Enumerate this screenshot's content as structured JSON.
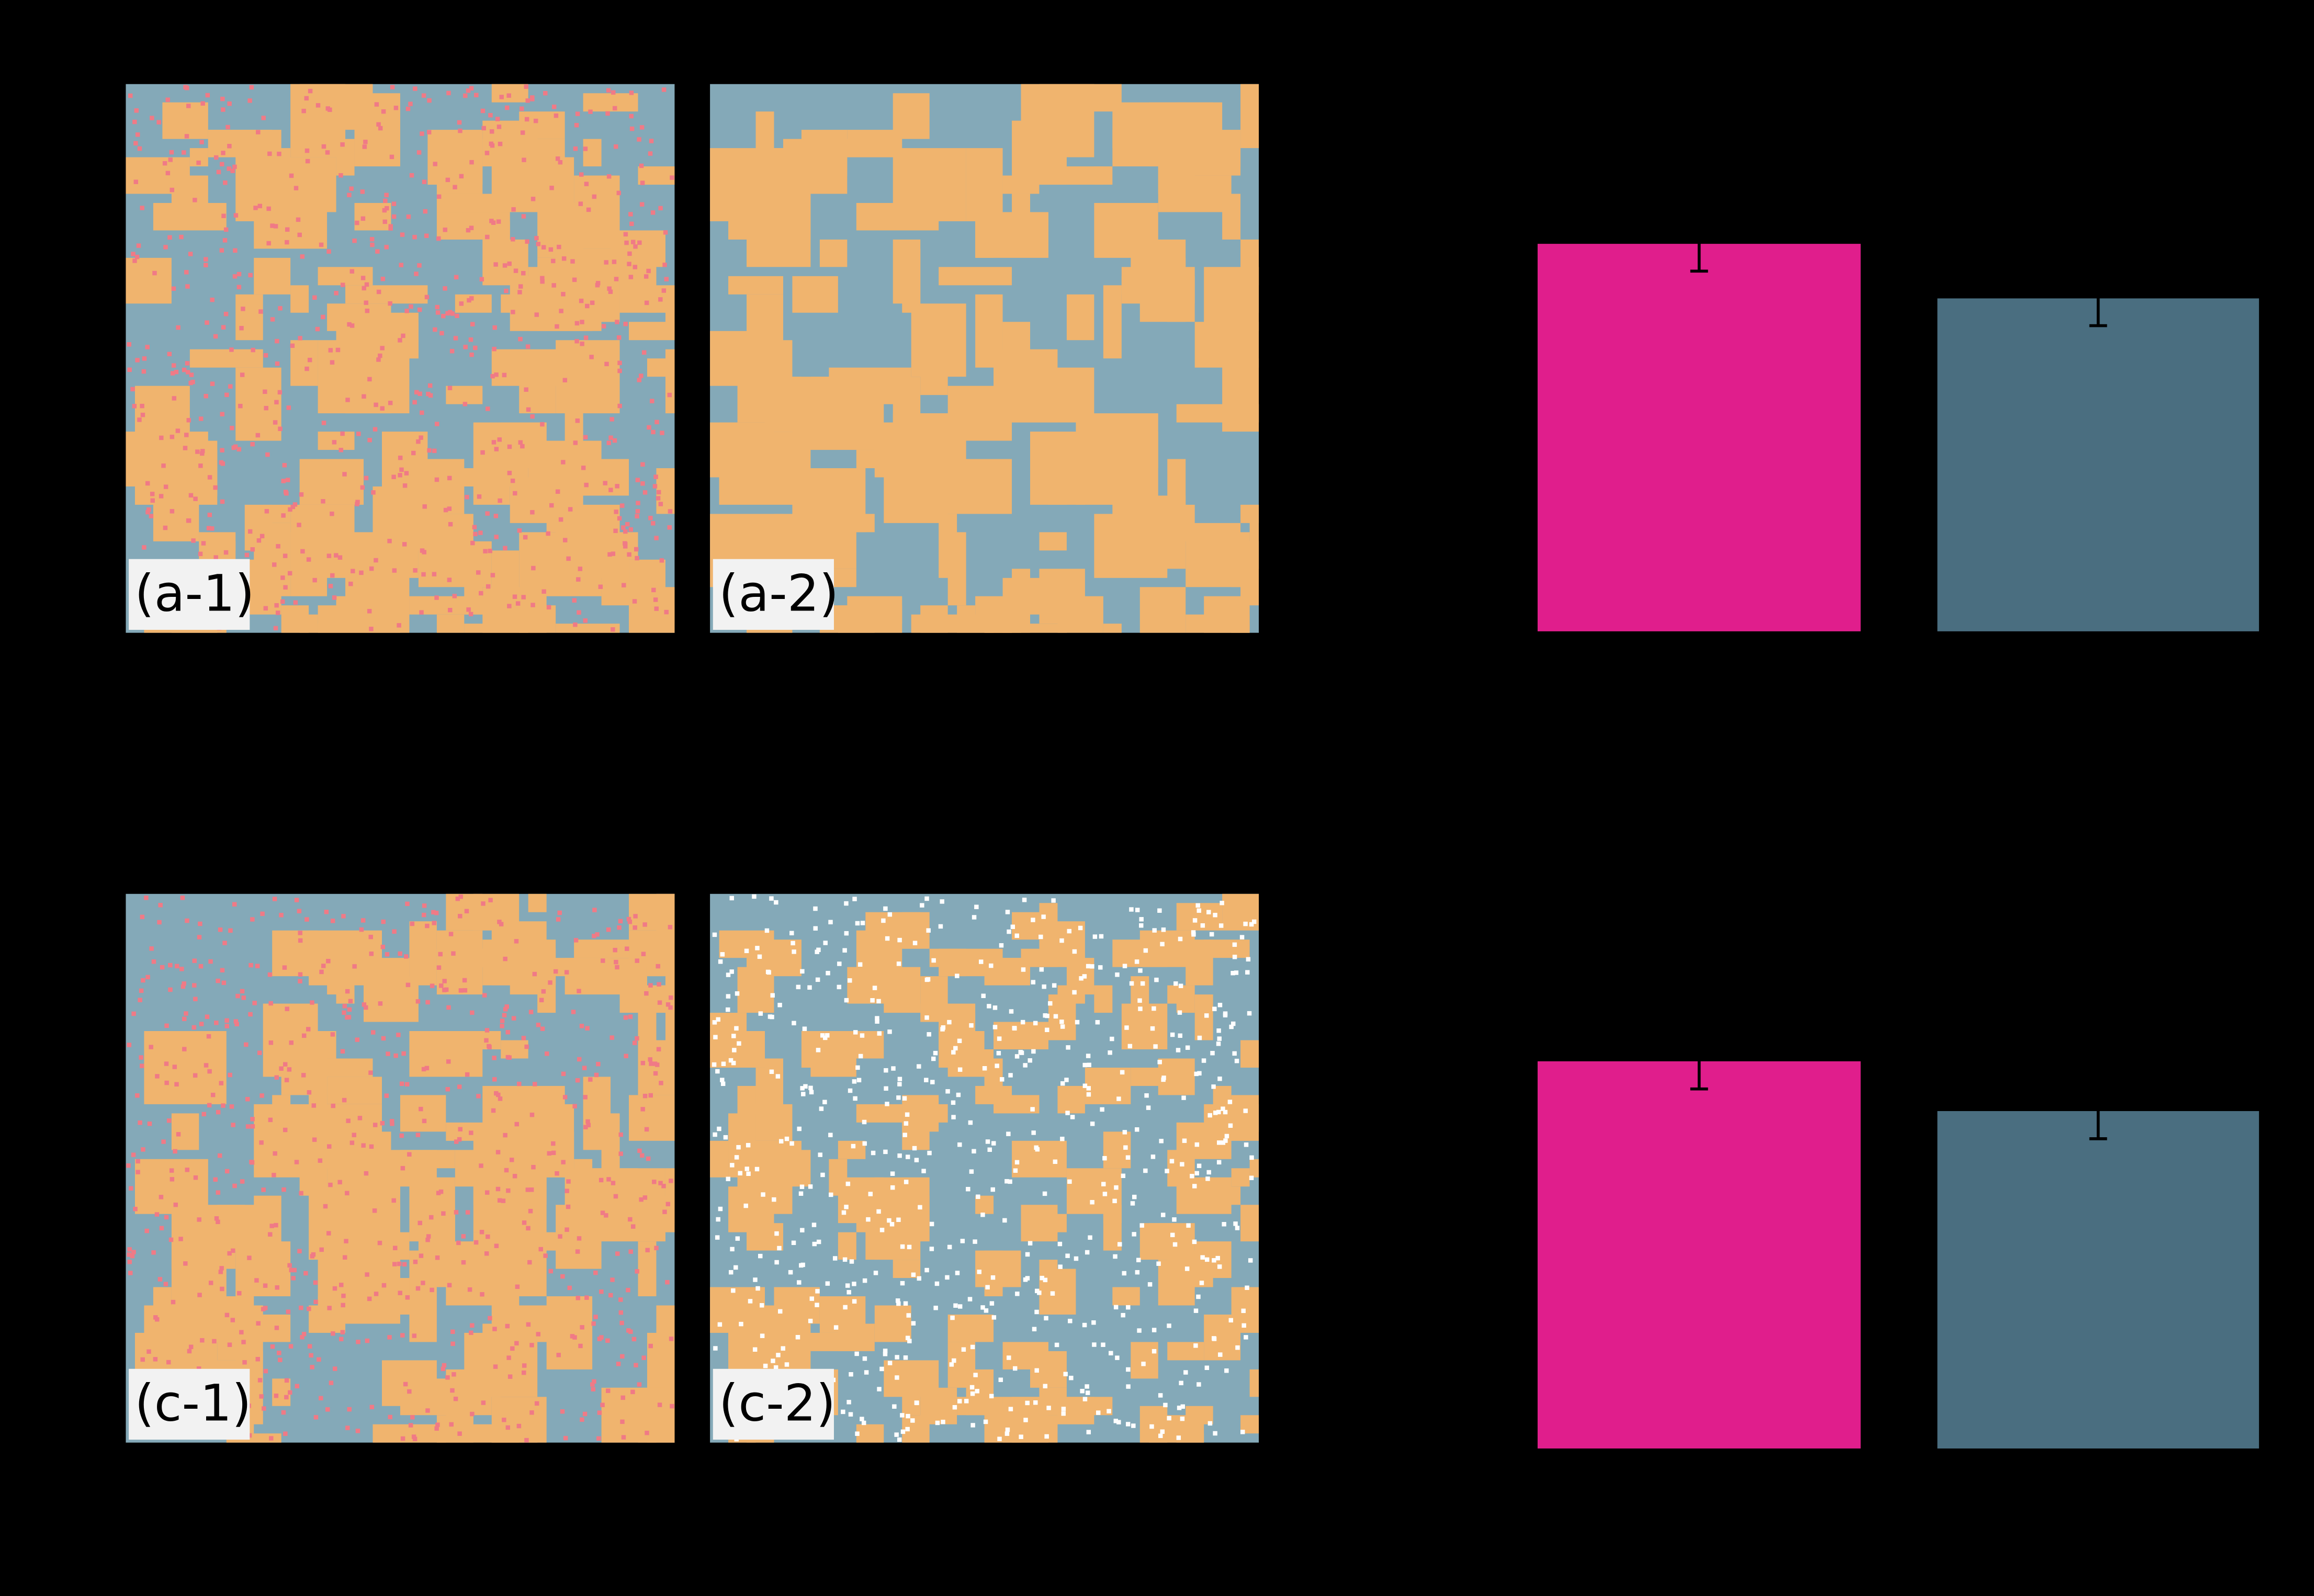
{
  "panels": [
    {
      "label": "(a-1)"
    },
    {
      "label": "(a-2)"
    },
    {
      "label": "(c-1)"
    },
    {
      "label": "(c-2)"
    }
  ],
  "chart_data": [
    {
      "type": "bar",
      "categories": [
        null,
        null
      ],
      "values": [
        0.71,
        0.61
      ],
      "errors": [
        0.05,
        0.05
      ],
      "colors": [
        "#e01e8c",
        "#4a6e80"
      ],
      "ylim": [
        0,
        1
      ]
    },
    {
      "type": "bar",
      "categories": [
        null,
        null
      ],
      "values": [
        0.7,
        0.61
      ],
      "errors": [
        0.05,
        0.05
      ],
      "colors": [
        "#e01e8c",
        "#4a6e80"
      ],
      "ylim": [
        0,
        1
      ]
    }
  ]
}
